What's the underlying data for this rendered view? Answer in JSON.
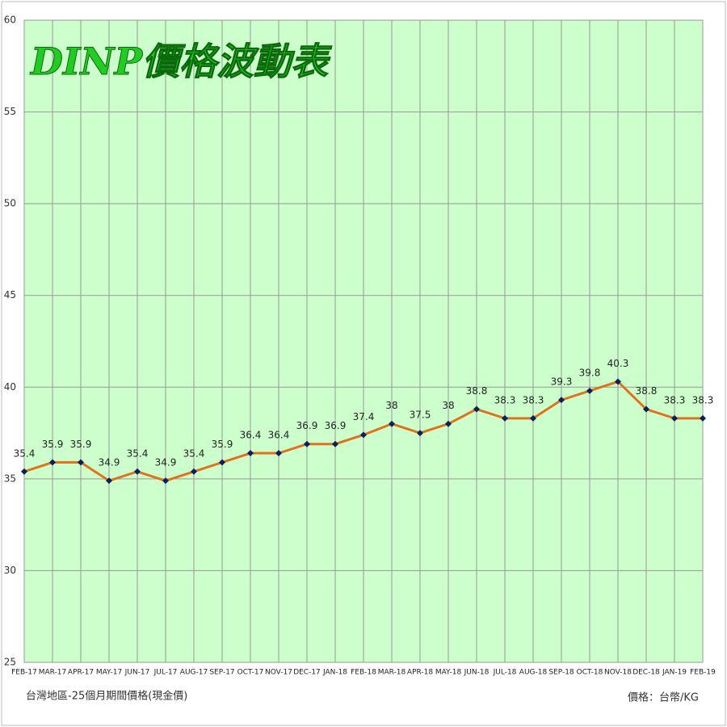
{
  "chart_data": {
    "type": "line",
    "title": "DINP價格波動表",
    "categories": [
      "FEB-17",
      "MAR-17",
      "APR-17",
      "MAY-17",
      "JUN-17",
      "JUL-17",
      "AUG-17",
      "SEP-17",
      "OCT-17",
      "NOV-17",
      "DEC-17",
      "JAN-18",
      "FEB-18",
      "MAR-18",
      "APR-18",
      "MAY-18",
      "JUN-18",
      "JUL-18",
      "AUG-18",
      "SEP-18",
      "OCT-18",
      "NOV-18",
      "DEC-18",
      "JAN-19",
      "FEB-19"
    ],
    "values": [
      35.4,
      35.9,
      35.9,
      34.9,
      35.4,
      34.9,
      35.4,
      35.9,
      36.4,
      36.4,
      36.9,
      36.9,
      37.4,
      38,
      37.5,
      38,
      38.8,
      38.3,
      38.3,
      39.3,
      39.8,
      40.3,
      38.8,
      38.3,
      38.3
    ],
    "color": "#e0721e",
    "marker_color": "#0a1f5c",
    "background": "#ccffcc",
    "ylim": [
      25,
      60
    ],
    "yticks": [
      25,
      30,
      35,
      40,
      45,
      50,
      55,
      60
    ],
    "grid": true,
    "footnote_left": "台灣地區-25個月期間價格(現金價)",
    "footnote_right": "價格：台幣/KG"
  }
}
